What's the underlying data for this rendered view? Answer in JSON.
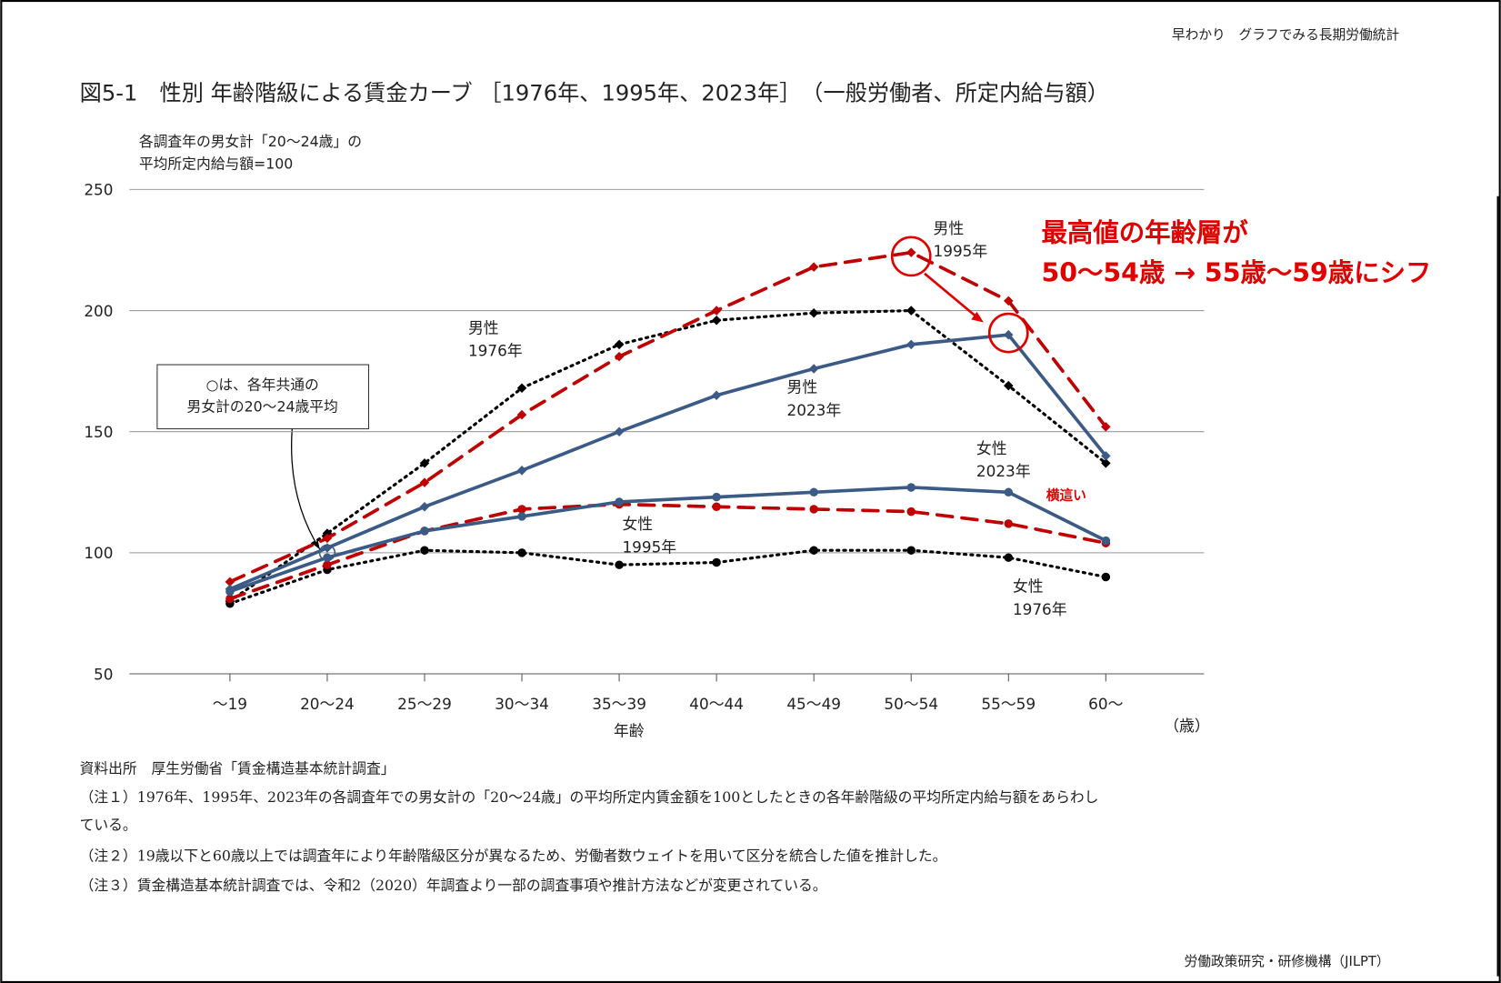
{
  "header": "早わかり　グラフでみる長期労働統計",
  "chart_data": {
    "type": "line",
    "title": "図5-1　性別 年齢階級による賃金カーブ ［1976年、1995年、2023年］　（一般労働者、所定内給与額）",
    "ylabel": [
      "各調査年の男女計「20～24歳」の",
      "平均所定内給与額=100"
    ],
    "xlabel": "年齢",
    "xunit": "（歳）",
    "categories": [
      "～19",
      "20～24",
      "25～29",
      "30～34",
      "35～39",
      "40～44",
      "45～49",
      "50～54",
      "55～59",
      "60～"
    ],
    "ylim": [
      50,
      250
    ],
    "yticks": [
      50,
      100,
      150,
      200,
      250
    ],
    "grid": true,
    "series": [
      {
        "name": "男性",
        "year": "1976年",
        "color": "#000000",
        "dash": "dotted",
        "marker": "diamond",
        "values": [
          80,
          108,
          137,
          168,
          186,
          196,
          199,
          200,
          169,
          137
        ]
      },
      {
        "name": "男性",
        "year": "1995年",
        "color": "#c00000",
        "dash": "dashed",
        "marker": "diamond",
        "values": [
          88,
          106,
          129,
          157,
          181,
          200,
          218,
          224,
          204,
          152
        ]
      },
      {
        "name": "男性",
        "year": "2023年",
        "color": "#3b5b86",
        "dash": "solid",
        "marker": "diamond",
        "values": [
          85,
          102,
          119,
          134,
          150,
          165,
          176,
          186,
          190,
          140
        ]
      },
      {
        "name": "女性",
        "year": "1976年",
        "color": "#000000",
        "dash": "dotted",
        "marker": "circle",
        "values": [
          79,
          93,
          101,
          100,
          95,
          96,
          101,
          101,
          98,
          90
        ]
      },
      {
        "name": "女性",
        "year": "1995年",
        "color": "#c00000",
        "dash": "dashed",
        "marker": "circle",
        "values": [
          81,
          95,
          109,
          118,
          120,
          119,
          118,
          117,
          112,
          104
        ]
      },
      {
        "name": "女性",
        "year": "2023年",
        "color": "#3b5b86",
        "dash": "solid",
        "marker": "circle",
        "values": [
          84,
          98,
          109,
          115,
          121,
          123,
          125,
          127,
          125,
          105
        ]
      }
    ],
    "box_note": [
      "○は、各年共通の",
      "男女計の20～24歳平均"
    ],
    "shift_note": [
      "最高値の年齢層が",
      "50～54歳 → 55歳～59歳にシフ"
    ],
    "flat_note": "横這い"
  },
  "source": "資料出所　厚生労働省「賃金構造基本統計調査」",
  "notes": [
    "（注１）1976年、1995年、2023年の各調査年での男女計の「20～24歳」の平均所定内賃金額を100としたときの各年齢階級の平均所定内給与額をあらわし",
    "ている。",
    "（注２）19歳以下と60歳以上では調査年により年齢階級区分が異なるため、労働者数ウェイトを用いて区分を統合した値を推計した。",
    "（注３）賃金構造基本統計調査では、令和2（2020）年調査より一部の調査事項や推計方法などが変更されている。"
  ],
  "footer": "労働政策研究・研修機構（JILPT）"
}
